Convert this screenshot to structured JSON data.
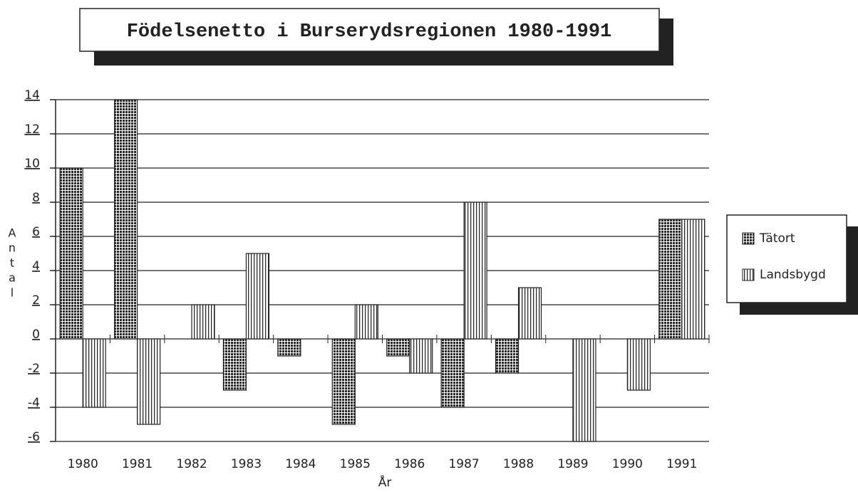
{
  "chart_data": {
    "type": "bar",
    "title": "Födelsenetto i Burserydsregionen 1980-1991",
    "x_label": "År",
    "y_label": "Antal",
    "categories": [
      "1980",
      "1981",
      "1982",
      "1983",
      "1984",
      "1985",
      "1986",
      "1987",
      "1988",
      "1989",
      "1990",
      "1991"
    ],
    "series": [
      {
        "name": "Tätort",
        "color": "#2a2a2a",
        "pattern": "crosshatch",
        "values": [
          10,
          14,
          0,
          -3,
          -1,
          -5,
          -1,
          -4,
          -2,
          0,
          0,
          7
        ]
      },
      {
        "name": "Landsbygd",
        "color": "#2a2a2a",
        "pattern": "vertical",
        "values": [
          -4,
          -5,
          2,
          5,
          0,
          2,
          -2,
          8,
          3,
          -6,
          -3,
          7
        ]
      }
    ],
    "ylim": [
      -6,
      14
    ],
    "yticks": [
      -6,
      -4,
      -2,
      0,
      2,
      4,
      6,
      8,
      10,
      12,
      14
    ],
    "grid": true,
    "legend": "right"
  }
}
